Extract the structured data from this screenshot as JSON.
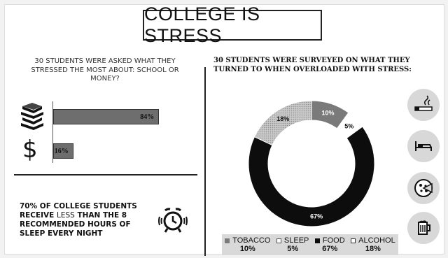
{
  "title": "COLLEGE IS STRESS",
  "left": {
    "question": "30 STUDENTS WERE ASKED WHAT THEY STRESSED THE MOST ABOUT: SCHOOL OR MONEY?",
    "bars": [
      {
        "icon": "books-icon",
        "value": 84,
        "label": "84%"
      },
      {
        "icon": "dollar-icon",
        "value": 16,
        "label": "16%"
      }
    ],
    "sleep": {
      "part1": "70% OF COLLEGE STUDENTS RECEIVE ",
      "less": "LESS",
      "part2": " THAN THE 8 RECOMMENDED HOURS OF SLEEP EVERY NIGHT"
    }
  },
  "right": {
    "question_part1": "30 STUDENTS WERE SURVEYED ON WHAT THEY TURNED TO WHEN ",
    "question_emph": "OVERLOADED",
    "question_part2": " WITH STRESS:"
  },
  "chart_data": {
    "type": "pie",
    "categories": [
      "TOBACCO",
      "SLEEP",
      "FOOD",
      "ALCOHOL"
    ],
    "values": [
      10,
      5,
      67,
      18
    ],
    "labels": [
      "10%",
      "5%",
      "67%",
      "18%"
    ],
    "colors": [
      "#7a7a7a",
      "#ffffff",
      "#0d0d0d",
      "#bdbdbd"
    ],
    "legend": "bottom"
  },
  "side_icons": [
    "cigarette-icon",
    "bed-icon",
    "pizza-icon",
    "beer-icon"
  ]
}
